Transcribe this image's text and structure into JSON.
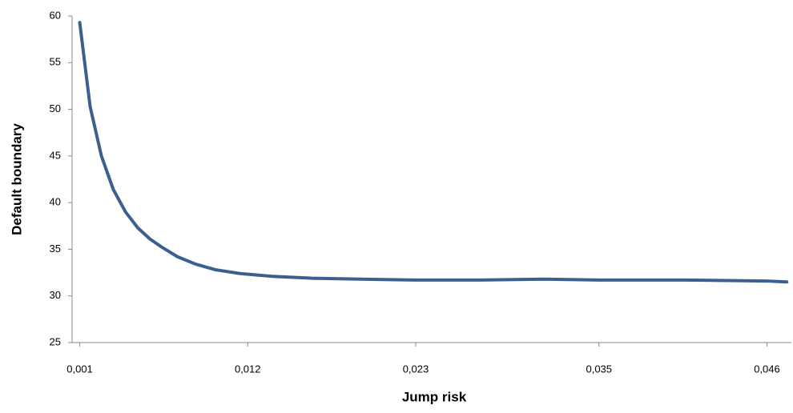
{
  "chart_data": {
    "type": "line",
    "x_label": "Jump risk",
    "y_label": "Default boundary",
    "x": [
      0.001,
      0.00168,
      0.00242,
      0.0032,
      0.004,
      0.0048,
      0.0056,
      0.0064,
      0.0074,
      0.0086,
      0.0099,
      0.0115,
      0.0136,
      0.0162,
      0.0194,
      0.023,
      0.0272,
      0.0314,
      0.035,
      0.0406,
      0.046,
      0.0473
    ],
    "series": [
      {
        "name": "Default boundary",
        "color": "#3b5f8e",
        "values": [
          59.3,
          50.3,
          45,
          41.4,
          39.0,
          37.3,
          36.1,
          35.2,
          34.2,
          33.4,
          32.8,
          32.4,
          32.1,
          31.9,
          31.8,
          31.7,
          31.7,
          31.8,
          31.7,
          31.7,
          31.6,
          31.5
        ]
      }
    ],
    "xlim": [
      0.0005,
      0.0476
    ],
    "xticks": [
      {
        "value": 0.001,
        "label": "0,001"
      },
      {
        "value": 0.012,
        "label": "0,012"
      },
      {
        "value": 0.023,
        "label": "0,023"
      },
      {
        "value": 0.035,
        "label": "0,035"
      },
      {
        "value": 0.046,
        "label": "0,046"
      }
    ],
    "ylim": [
      25,
      60
    ],
    "yticks": [
      25,
      30,
      35,
      40,
      45,
      50,
      55,
      60
    ],
    "grid": false
  }
}
